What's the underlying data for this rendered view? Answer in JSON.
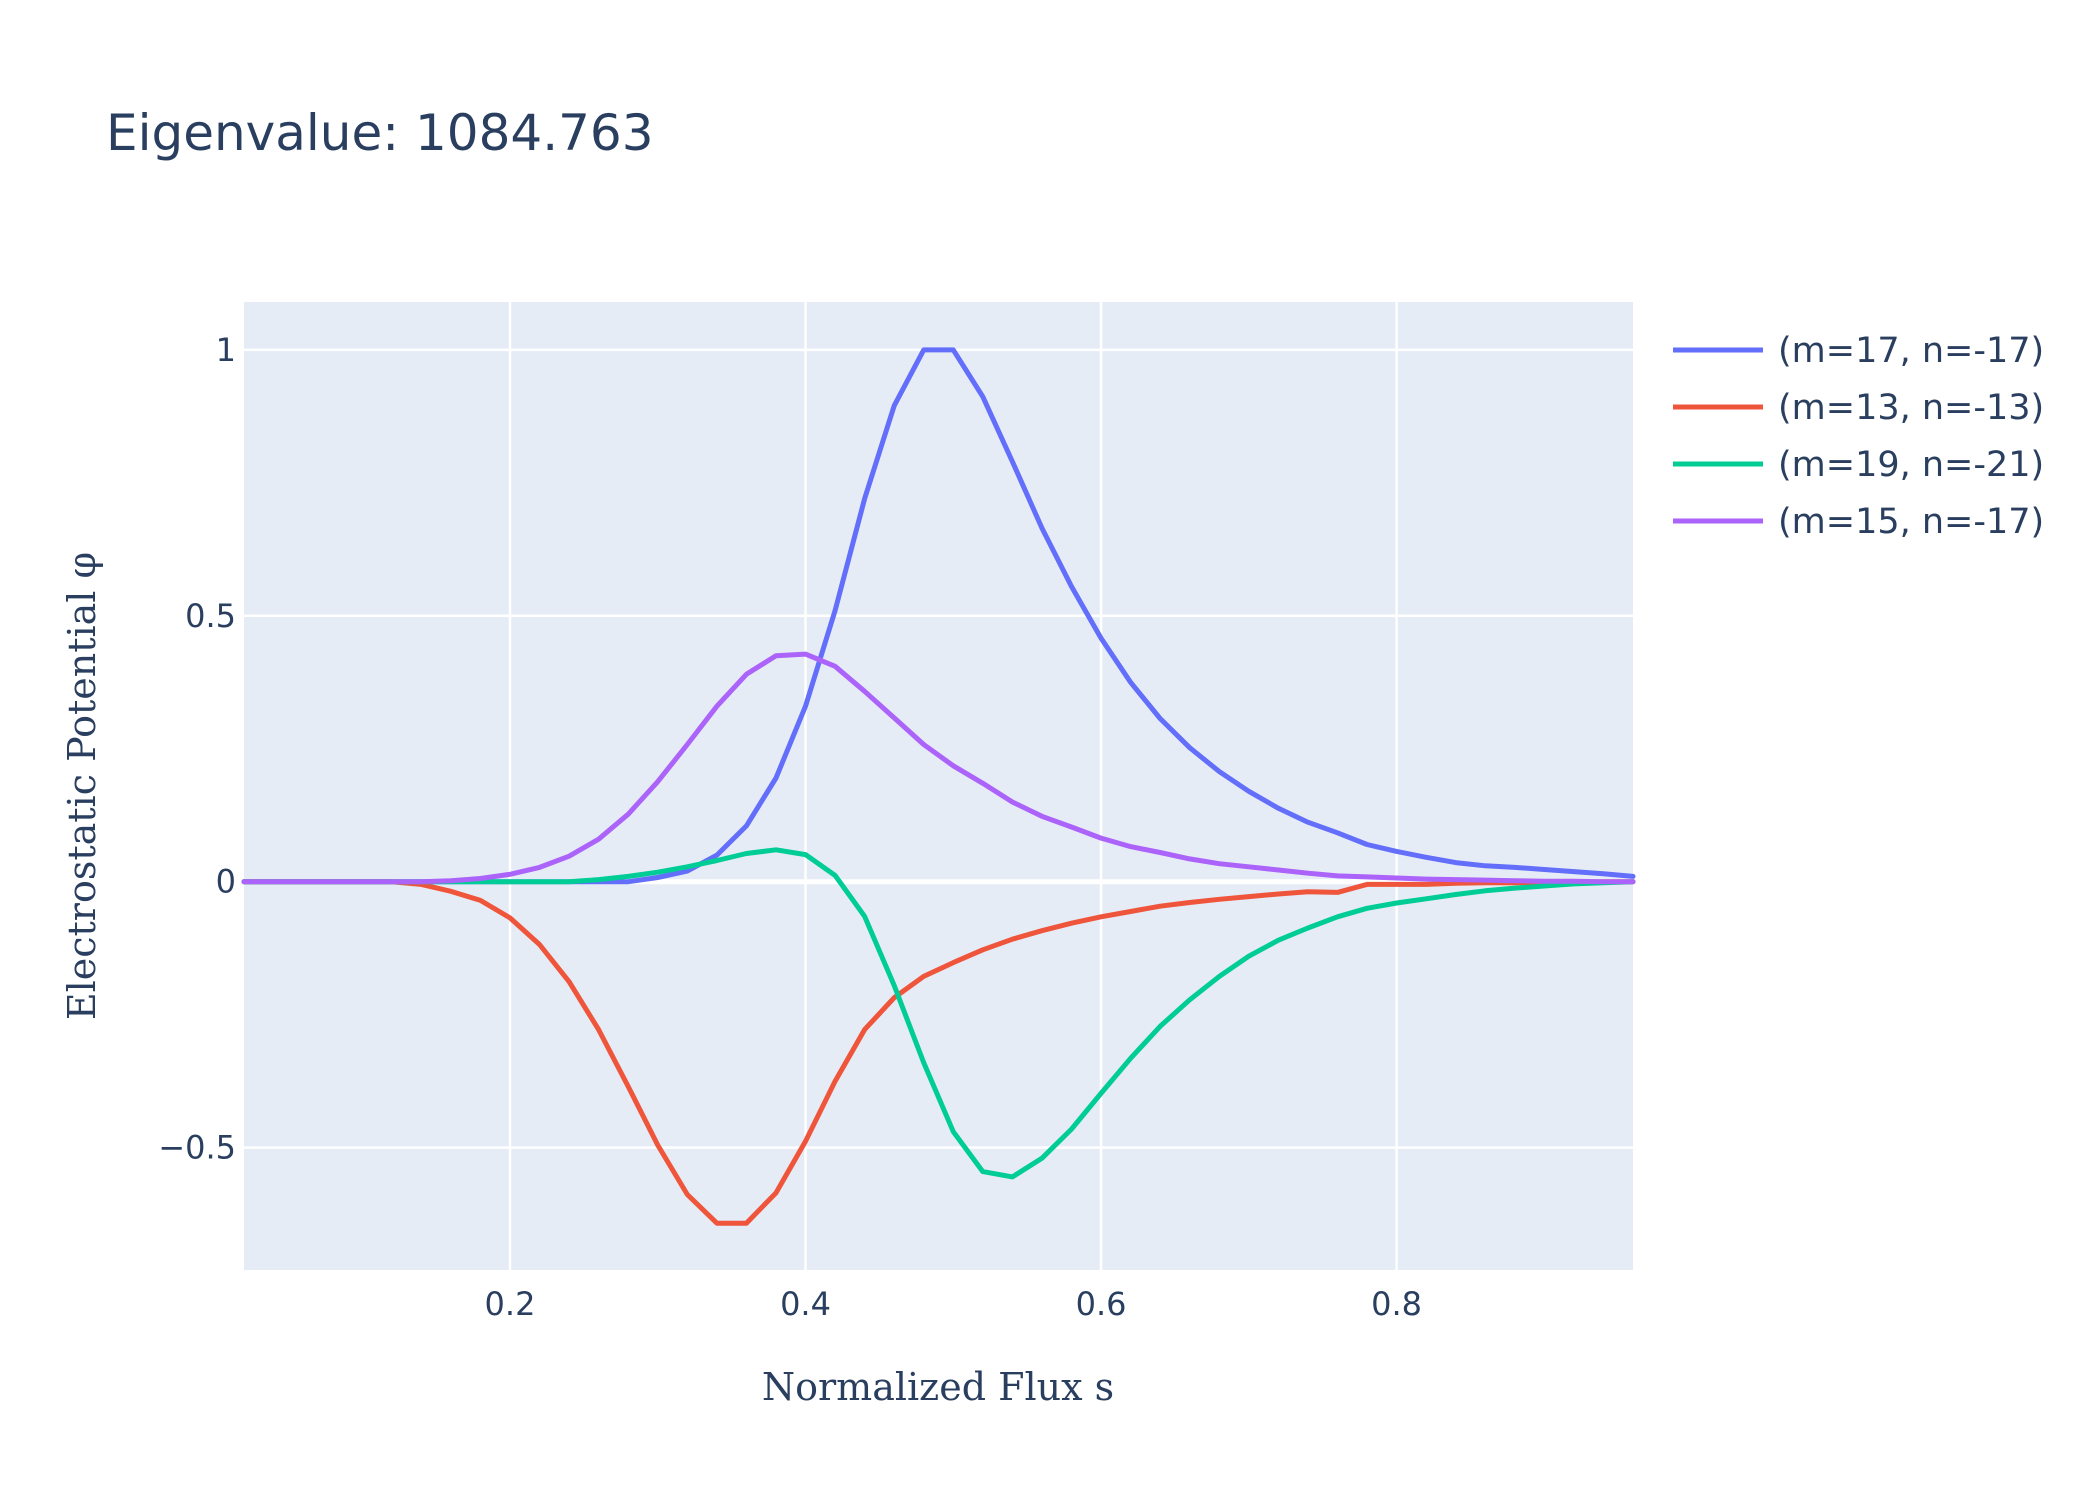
{
  "chart_data": {
    "type": "line",
    "title": "Eigenvalue: 1084.763",
    "xlabel": "Normalized Flux s",
    "ylabel": "Electrostatic Potential φ",
    "xlim": [
      0.02,
      0.96
    ],
    "ylim": [
      -0.73,
      1.09
    ],
    "x_ticks": [
      0.2,
      0.4,
      0.6,
      0.8
    ],
    "x_tick_labels": [
      "0.2",
      "0.4",
      "0.6",
      "0.8"
    ],
    "y_ticks": [
      1,
      0.5,
      0,
      -0.5
    ],
    "y_tick_labels": [
      "1",
      "0.5",
      "0",
      "−0.5"
    ],
    "grid": true,
    "legend_position": "top-right",
    "x": [
      0.02,
      0.04,
      0.06,
      0.08,
      0.1,
      0.12,
      0.14,
      0.16,
      0.18,
      0.2,
      0.22,
      0.24,
      0.26,
      0.28,
      0.3,
      0.32,
      0.34,
      0.36,
      0.38,
      0.4,
      0.42,
      0.44,
      0.46,
      0.48,
      0.5,
      0.52,
      0.54,
      0.56,
      0.58,
      0.6,
      0.62,
      0.64,
      0.66,
      0.68,
      0.7,
      0.72,
      0.74,
      0.76,
      0.78,
      0.8,
      0.82,
      0.84,
      0.86,
      0.88,
      0.9,
      0.92,
      0.94,
      0.96
    ],
    "series": [
      {
        "name": "(m=17, n=-17)",
        "color": "#636efa",
        "values": [
          0,
          0,
          0,
          0,
          0,
          0,
          0,
          0,
          0,
          0,
          0,
          0,
          0,
          0,
          0.008,
          0.02,
          0.05,
          0.105,
          0.195,
          0.33,
          0.51,
          0.72,
          0.895,
          1.0,
          1.0,
          0.912,
          0.79,
          0.665,
          0.555,
          0.458,
          0.375,
          0.307,
          0.252,
          0.207,
          0.17,
          0.138,
          0.112,
          0.092,
          0.07,
          0.057,
          0.046,
          0.036,
          0.03,
          0.027,
          0.023,
          0.019,
          0.015,
          0.01
        ]
      },
      {
        "name": "(m=13, n=-13)",
        "color": "#ef553b",
        "values": [
          0,
          0,
          0,
          0,
          0,
          0,
          -0.005,
          -0.018,
          -0.035,
          -0.068,
          -0.118,
          -0.188,
          -0.278,
          -0.385,
          -0.495,
          -0.588,
          -0.642,
          -0.642,
          -0.585,
          -0.488,
          -0.375,
          -0.278,
          -0.218,
          -0.178,
          -0.152,
          -0.128,
          -0.108,
          -0.092,
          -0.078,
          -0.066,
          -0.056,
          -0.046,
          -0.039,
          -0.033,
          -0.028,
          -0.023,
          -0.019,
          -0.02,
          -0.005,
          -0.005,
          -0.005,
          -0.003,
          -0.002,
          -0.002,
          -0.001,
          -0.001,
          0,
          0
        ]
      },
      {
        "name": "(m=19, n=-21)",
        "color": "#00cc96",
        "values": [
          0,
          0,
          0,
          0,
          0,
          0,
          0,
          0,
          0,
          0,
          0,
          0,
          0.004,
          0.01,
          0.018,
          0.028,
          0.04,
          0.053,
          0.06,
          0.051,
          0.012,
          -0.065,
          -0.195,
          -0.34,
          -0.47,
          -0.545,
          -0.555,
          -0.52,
          -0.465,
          -0.398,
          -0.332,
          -0.272,
          -0.222,
          -0.178,
          -0.14,
          -0.11,
          -0.087,
          -0.066,
          -0.05,
          -0.04,
          -0.032,
          -0.024,
          -0.017,
          -0.012,
          -0.008,
          -0.004,
          -0.002,
          0
        ]
      },
      {
        "name": "(m=15, n=-17)",
        "color": "#ab63fa",
        "values": [
          0,
          0,
          0,
          0,
          0,
          0,
          0,
          0.002,
          0.006,
          0.014,
          0.027,
          0.048,
          0.08,
          0.127,
          0.188,
          0.258,
          0.33,
          0.39,
          0.425,
          0.428,
          0.405,
          0.358,
          0.308,
          0.258,
          0.218,
          0.185,
          0.15,
          0.123,
          0.103,
          0.082,
          0.066,
          0.055,
          0.043,
          0.034,
          0.028,
          0.022,
          0.016,
          0.011,
          0.009,
          0.007,
          0.005,
          0.004,
          0.003,
          0.002,
          0.001,
          0.001,
          0,
          0
        ]
      }
    ]
  }
}
